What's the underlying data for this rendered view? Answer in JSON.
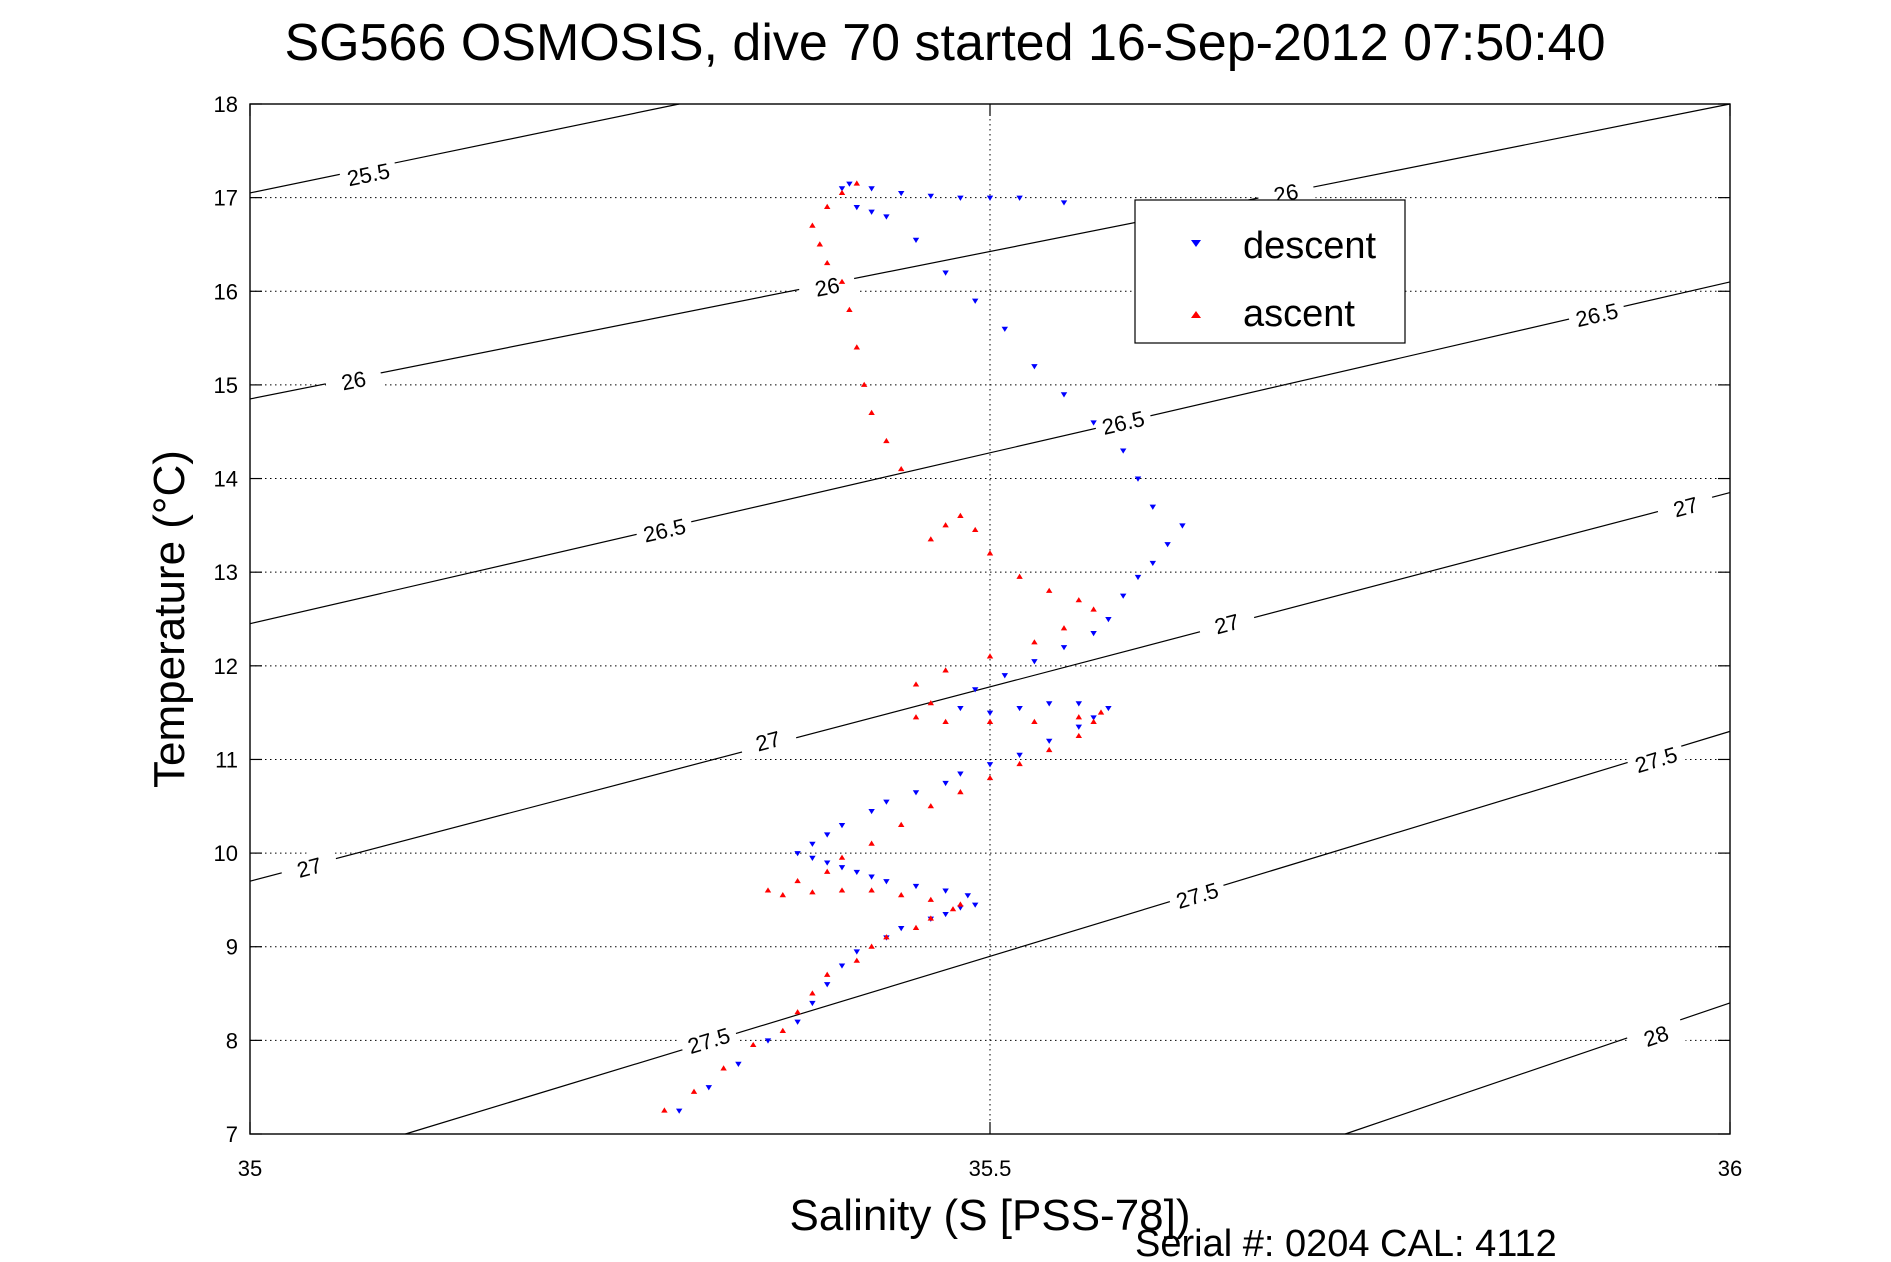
{
  "chart_data": {
    "type": "scatter",
    "title": "SG566 OSMOSIS, dive 70 started 16-Sep-2012 07:50:40",
    "xlabel": "Salinity (S [PSS-78])",
    "ylabel": "Temperature (°C)",
    "xlim": [
      35,
      36
    ],
    "ylim": [
      7,
      18
    ],
    "x_ticks": [
      35,
      35.5,
      36
    ],
    "x_tick_labels": [
      "35",
      "35.5",
      "36"
    ],
    "y_ticks": [
      7,
      8,
      9,
      10,
      11,
      12,
      13,
      14,
      15,
      16,
      17,
      18
    ],
    "y_tick_labels": [
      "7",
      "8",
      "9",
      "10",
      "11",
      "12",
      "13",
      "14",
      "15",
      "16",
      "17",
      "18"
    ],
    "grid": true,
    "legend_position": "top-right",
    "footer": "Serial #: 0204  CAL: 4112",
    "series": [
      {
        "name": "descent",
        "marker": "down-triangle",
        "color": "#0000ff",
        "x": [
          35.29,
          35.31,
          35.33,
          35.35,
          35.37,
          35.38,
          35.39,
          35.4,
          35.41,
          35.43,
          35.44,
          35.46,
          35.47,
          35.48,
          35.49,
          35.485,
          35.47,
          35.45,
          35.43,
          35.42,
          35.41,
          35.4,
          35.39,
          35.38,
          35.37,
          35.38,
          35.39,
          35.4,
          35.42,
          35.43,
          35.45,
          35.47,
          35.48,
          35.5,
          35.52,
          35.54,
          35.56,
          35.57,
          35.58,
          35.56,
          35.54,
          35.52,
          35.5,
          35.48,
          35.49,
          35.51,
          35.53,
          35.55,
          35.57,
          35.58,
          35.59,
          35.6,
          35.61,
          35.62,
          35.63,
          35.61,
          35.6,
          35.59,
          35.57,
          35.55,
          35.53,
          35.51,
          35.49,
          35.47,
          35.45,
          35.43,
          35.42,
          35.41,
          35.4,
          35.405,
          35.42,
          35.44,
          35.46,
          35.48,
          35.5,
          35.52,
          35.55
        ],
        "y": [
          7.25,
          7.5,
          7.75,
          8.0,
          8.2,
          8.4,
          8.6,
          8.8,
          8.95,
          9.1,
          9.2,
          9.3,
          9.35,
          9.42,
          9.45,
          9.55,
          9.6,
          9.65,
          9.7,
          9.75,
          9.8,
          9.85,
          9.9,
          9.95,
          10.0,
          10.1,
          10.2,
          10.3,
          10.45,
          10.55,
          10.65,
          10.75,
          10.85,
          10.95,
          11.05,
          11.2,
          11.35,
          11.45,
          11.55,
          11.6,
          11.6,
          11.55,
          11.5,
          11.55,
          11.75,
          11.9,
          12.05,
          12.2,
          12.35,
          12.5,
          12.75,
          12.95,
          13.1,
          13.3,
          13.5,
          13.7,
          14.0,
          14.3,
          14.6,
          14.9,
          15.2,
          15.6,
          15.9,
          16.2,
          16.55,
          16.8,
          16.85,
          16.9,
          17.1,
          17.15,
          17.1,
          17.05,
          17.02,
          17.0,
          17.0,
          17.0,
          16.95
        ]
      },
      {
        "name": "ascent",
        "marker": "up-triangle",
        "color": "#ff0000",
        "x": [
          35.28,
          35.3,
          35.32,
          35.34,
          35.36,
          35.37,
          35.38,
          35.39,
          35.41,
          35.42,
          35.43,
          35.45,
          35.46,
          35.475,
          35.48,
          35.46,
          35.44,
          35.42,
          35.4,
          35.38,
          35.36,
          35.35,
          35.37,
          35.39,
          35.4,
          35.42,
          35.44,
          35.46,
          35.48,
          35.5,
          35.52,
          35.54,
          35.56,
          35.57,
          35.575,
          35.56,
          35.53,
          35.5,
          35.47,
          35.45,
          35.46,
          35.45,
          35.47,
          35.5,
          35.53,
          35.55,
          35.57,
          35.56,
          35.54,
          35.52,
          35.5,
          35.49,
          35.48,
          35.47,
          35.46,
          35.44,
          35.43,
          35.42,
          35.415,
          35.41,
          35.405,
          35.4,
          35.39,
          35.385,
          35.38,
          35.39,
          35.4,
          35.41
        ],
        "y": [
          7.25,
          7.45,
          7.7,
          7.95,
          8.1,
          8.3,
          8.5,
          8.7,
          8.85,
          9.0,
          9.1,
          9.2,
          9.3,
          9.4,
          9.45,
          9.5,
          9.55,
          9.6,
          9.6,
          9.58,
          9.55,
          9.6,
          9.7,
          9.8,
          9.95,
          10.1,
          10.3,
          10.5,
          10.65,
          10.8,
          10.95,
          11.1,
          11.25,
          11.4,
          11.5,
          11.45,
          11.4,
          11.4,
          11.4,
          11.45,
          11.6,
          11.8,
          11.95,
          12.1,
          12.25,
          12.4,
          12.6,
          12.7,
          12.8,
          12.95,
          13.2,
          13.45,
          13.6,
          13.5,
          13.35,
          14.1,
          14.4,
          14.7,
          15.0,
          15.4,
          15.8,
          16.1,
          16.3,
          16.5,
          16.7,
          16.9,
          17.05,
          17.15
        ]
      }
    ],
    "contours": [
      {
        "label": "25.5",
        "lines": [
          [
            [
              35,
              17.05
            ],
            [
              35.29,
              18
            ]
          ]
        ],
        "labels_at": [
          [
            35.08,
            17.25
          ]
        ]
      },
      {
        "label": "26",
        "lines": [
          [
            [
              35,
              14.85
            ],
            [
              36,
              18.0
            ]
          ]
        ],
        "labels_at": [
          [
            35.07,
            15.05
          ],
          [
            35.39,
            16.05
          ],
          [
            35.7,
            17.05
          ]
        ]
      },
      {
        "label": "26.5",
        "lines": [
          [
            [
              35,
              12.45
            ],
            [
              36,
              16.1
            ]
          ]
        ],
        "labels_at": [
          [
            35.28,
            13.45
          ],
          [
            35.59,
            14.6
          ],
          [
            35.91,
            15.75
          ]
        ]
      },
      {
        "label": "27",
        "lines": [
          [
            [
              35,
              9.7
            ],
            [
              36,
              13.85
            ]
          ]
        ],
        "labels_at": [
          [
            35.04,
            9.85
          ],
          [
            35.35,
            11.2
          ],
          [
            35.66,
            12.45
          ],
          [
            35.97,
            13.7
          ]
        ]
      },
      {
        "label": "27.5",
        "lines": [
          [
            [
              35.105,
              7.0
            ],
            [
              36,
              11.3
            ]
          ]
        ],
        "labels_at": [
          [
            35.31,
            8.0
          ],
          [
            35.64,
            9.55
          ],
          [
            35.95,
            11.0
          ]
        ]
      },
      {
        "label": "28",
        "lines": [
          [
            [
              35.74,
              7.0
            ],
            [
              36,
              8.4
            ]
          ]
        ],
        "labels_at": [
          [
            35.95,
            8.05
          ]
        ]
      }
    ]
  }
}
